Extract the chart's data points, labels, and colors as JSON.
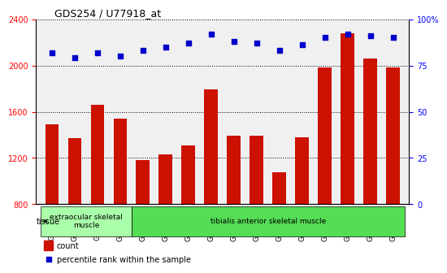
{
  "title": "GDS254 / U77918_at",
  "categories": [
    "GSM4242",
    "GSM4243",
    "GSM4244",
    "GSM4245",
    "GSM5553",
    "GSM5554",
    "GSM5555",
    "GSM5557",
    "GSM5559",
    "GSM5560",
    "GSM5561",
    "GSM5562",
    "GSM5563",
    "GSM5564",
    "GSM5565",
    "GSM5566"
  ],
  "counts": [
    1490,
    1370,
    1660,
    1540,
    1185,
    1230,
    1310,
    1790,
    1390,
    1390,
    1080,
    1380,
    1980,
    2280,
    2060,
    1980
  ],
  "percentiles": [
    82,
    79,
    82,
    80,
    83,
    85,
    87,
    92,
    88,
    87,
    83,
    86,
    90,
    92,
    91,
    90
  ],
  "bar_color": "#cc1100",
  "dot_color": "#0000cc",
  "ylim_left": [
    800,
    2400
  ],
  "ylim_right": [
    0,
    100
  ],
  "yticks_left": [
    800,
    1200,
    1600,
    2000,
    2400
  ],
  "yticks_right": [
    0,
    25,
    50,
    75,
    100
  ],
  "grid_color": "#000000",
  "tissue_groups": [
    {
      "label": "extraocular skeletal\nmuscle",
      "start": 0,
      "end": 4,
      "color": "#aaffaa"
    },
    {
      "label": "tibialis anterior skeletal muscle",
      "start": 4,
      "end": 16,
      "color": "#55dd55"
    }
  ],
  "tissue_label": "tissue",
  "legend_count_label": "count",
  "legend_pct_label": "percentile rank within the sample",
  "background_color": "#ffffff",
  "plot_bg_color": "#e8e8e8"
}
